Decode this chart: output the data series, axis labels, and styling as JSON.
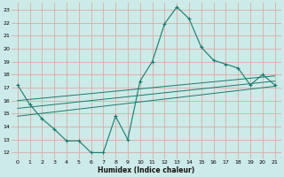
{
  "xlabel": "Humidex (Indice chaleur)",
  "background_color": "#cceae7",
  "grid_color": "#ddaaaa",
  "line_color": "#1a7a6e",
  "xlim": [
    -0.5,
    21.5
  ],
  "ylim": [
    11.5,
    23.5
  ],
  "xticks": [
    0,
    1,
    2,
    3,
    4,
    5,
    6,
    7,
    8,
    9,
    10,
    11,
    12,
    13,
    14,
    15,
    16,
    17,
    18,
    19,
    20,
    21
  ],
  "yticks": [
    12,
    13,
    14,
    15,
    16,
    17,
    18,
    19,
    20,
    21,
    22,
    23
  ],
  "main_x": [
    0,
    1,
    2,
    3,
    4,
    5,
    6,
    7,
    8,
    9,
    10,
    11,
    12,
    13,
    14,
    15,
    16,
    17,
    18,
    19,
    20,
    21
  ],
  "main_y": [
    17.2,
    15.7,
    14.6,
    13.8,
    12.9,
    12.9,
    12.0,
    12.0,
    14.8,
    13.0,
    17.5,
    19.0,
    21.9,
    23.2,
    22.3,
    20.1,
    19.1,
    18.8,
    18.5,
    17.2,
    18.0,
    17.2
  ],
  "line1_x": [
    0,
    21
  ],
  "line1_y": [
    16.0,
    17.9
  ],
  "line2_x": [
    0,
    21
  ],
  "line2_y": [
    15.4,
    17.5
  ],
  "line3_x": [
    0,
    21
  ],
  "line3_y": [
    14.8,
    17.1
  ],
  "figsize": [
    3.2,
    2.0
  ],
  "dpi": 100
}
